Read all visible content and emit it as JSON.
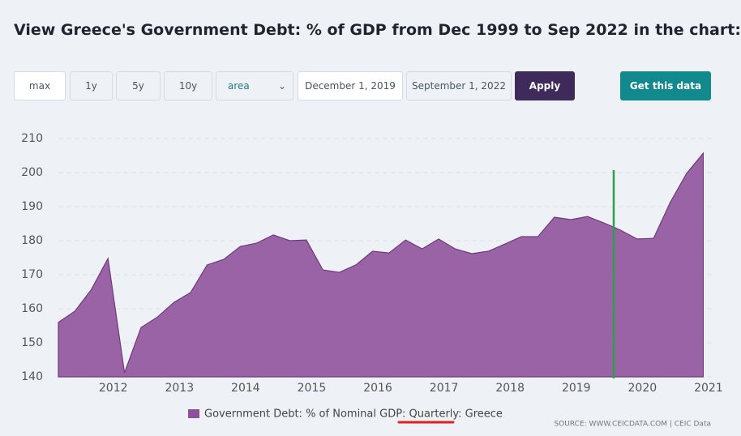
{
  "header": {
    "title": "View Greece's Government Debt: % of GDP from Dec 1999 to Sep 2022 in the chart:"
  },
  "controls": {
    "ranges": [
      "max",
      "1y",
      "5y",
      "10y"
    ],
    "chart_type": "area",
    "start_date": "December 1, 2019",
    "end_date": "September 1, 2022",
    "apply": "Apply",
    "get_data": "Get this data"
  },
  "chart_data": {
    "type": "area",
    "x": [
      2011.17,
      2011.42,
      2011.67,
      2011.92,
      2012.17,
      2012.42,
      2012.67,
      2012.92,
      2013.17,
      2013.42,
      2013.67,
      2013.92,
      2014.17,
      2014.42,
      2014.67,
      2014.92,
      2015.17,
      2015.42,
      2015.67,
      2015.92,
      2016.17,
      2016.42,
      2016.67,
      2016.92,
      2017.17,
      2017.42,
      2017.67,
      2017.92,
      2018.17,
      2018.42,
      2018.67,
      2018.92,
      2019.17,
      2019.42,
      2019.67,
      2019.92,
      2020.17,
      2020.42,
      2020.67,
      2020.92
    ],
    "series": [
      {
        "name": "Government Debt: % of Nominal GDP: Quarterly: Greece",
        "color": "#8e4f9b",
        "values": [
          156,
          159.3,
          165.7,
          174.8,
          141.2,
          154.5,
          157.6,
          161.9,
          164.8,
          172.9,
          174.5,
          178.3,
          179.3,
          181.7,
          180,
          180.2,
          171.4,
          170.7,
          172.9,
          176.9,
          176.4,
          180.2,
          177.6,
          180.5,
          177.6,
          176.2,
          176.9,
          179,
          181.2,
          181.2,
          186.9,
          186.2,
          187.1,
          185.2,
          183.1,
          180.5,
          180.7,
          191.2,
          199.8,
          205.7
        ]
      }
    ],
    "xlim": [
      2011.17,
      2021.05
    ],
    "xticks": [
      2012,
      2013,
      2014,
      2015,
      2016,
      2017,
      2018,
      2019,
      2020,
      2021
    ],
    "ylim": [
      140,
      210
    ],
    "yticks": [
      140,
      150,
      160,
      170,
      180,
      190,
      200,
      210
    ],
    "grid": true
  },
  "source": "SOURCE: WWW.CEICDATA.COM | CEIC Data"
}
